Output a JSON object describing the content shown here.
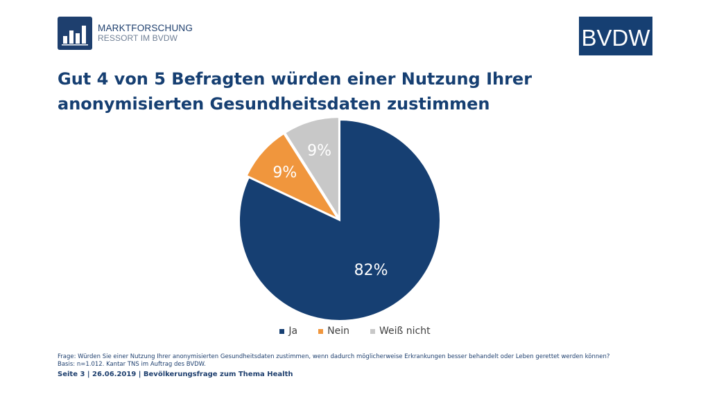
{
  "header": {
    "logo_left_line1": "MARKTFORSCHUNG",
    "logo_left_line2": "RESSORT IM BVDW",
    "logo_right": "BVDW"
  },
  "title_line1": "Gut 4 von 5 Befragten würden einer Nutzung Ihrer",
  "title_line2": "anonymisierten Gesundheitsdaten zustimmen",
  "chart_data": {
    "type": "pie",
    "title": "",
    "categories": [
      "Ja",
      "Nein",
      "Weiß nicht"
    ],
    "values": [
      82,
      9,
      9
    ],
    "labels": [
      "82%",
      "9%",
      "9%"
    ],
    "colors": [
      "#163f72",
      "#f0963d",
      "#c8c8c8"
    ],
    "legend_position": "bottom"
  },
  "footnote": {
    "question": "Frage: Würden Sie einer Nutzung Ihrer anonymisierten Gesundheitsdaten zustimmen, wenn dadurch möglicherweise Erkrankungen besser behandelt oder Leben gerettet werden können?",
    "basis": "Basis: n=1.012. Kantar TNS im Auftrag des BVDW."
  },
  "footer": "Seite 3 | 26.06.2019 | Bevölkerungsfrage zum Thema Health"
}
